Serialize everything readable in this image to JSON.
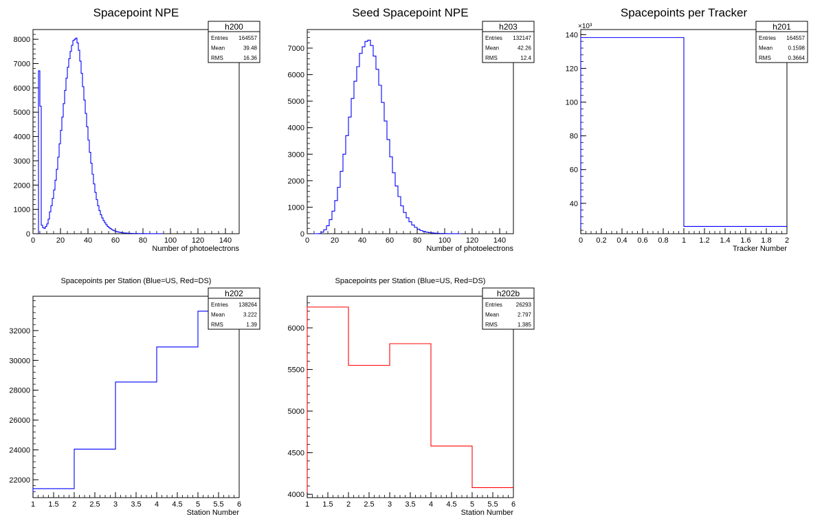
{
  "chart_data": [
    {
      "id": "h200",
      "type": "histogram",
      "title": "Spacepoint NPE",
      "xlabel": "Number of photoelectrons",
      "ylabel": "",
      "xlim": [
        0,
        150
      ],
      "ylim": [
        0,
        8400
      ],
      "xticks": [
        0,
        20,
        40,
        60,
        80,
        100,
        120,
        140
      ],
      "yticks": [
        0,
        1000,
        2000,
        3000,
        4000,
        5000,
        6000,
        7000,
        8000
      ],
      "y_multiplier_label": "",
      "color": "#0000ff",
      "stats": {
        "name": "h200",
        "rows": [
          [
            "Entries",
            "164557"
          ],
          [
            "Mean",
            "39.48"
          ],
          [
            "RMS",
            "16.36"
          ]
        ]
      },
      "bin_width": 1,
      "x_start": 4,
      "values": [
        6700,
        5250,
        350,
        250,
        220,
        300,
        400,
        600,
        900,
        1150,
        1450,
        1800,
        2200,
        2650,
        3150,
        3700,
        4250,
        4800,
        5350,
        5900,
        6400,
        6850,
        7200,
        7500,
        7750,
        7950,
        8000,
        8050,
        7850,
        7550,
        7100,
        6600,
        6050,
        5500,
        4950,
        4400,
        3850,
        3350,
        2900,
        2450,
        2050,
        1700,
        1400,
        1150,
        950,
        780,
        650,
        540,
        450,
        370,
        300,
        250,
        210,
        170,
        140,
        115,
        95,
        80,
        65,
        55,
        45,
        38,
        32,
        28,
        24,
        20,
        17,
        14,
        12,
        10,
        9,
        8,
        7,
        6,
        5,
        5,
        4,
        4,
        3,
        3,
        3,
        2,
        2,
        2,
        2,
        1,
        1,
        1,
        1,
        1
      ]
    },
    {
      "id": "h203",
      "type": "histogram",
      "title": "Seed Spacepoint NPE",
      "xlabel": "Number of photoelectrons",
      "ylabel": "",
      "xlim": [
        0,
        150
      ],
      "ylim": [
        0,
        7700
      ],
      "xticks": [
        0,
        20,
        40,
        60,
        80,
        100,
        120,
        140
      ],
      "yticks": [
        0,
        1000,
        2000,
        3000,
        4000,
        5000,
        6000,
        7000
      ],
      "y_multiplier_label": "",
      "color": "#0000ff",
      "stats": {
        "name": "h203",
        "rows": [
          [
            "Entries",
            "132147"
          ],
          [
            "Mean",
            "42.26"
          ],
          [
            "RMS",
            "12.4"
          ]
        ]
      },
      "bin_width": 2,
      "x_start": 0,
      "values": [
        0,
        0,
        0,
        0,
        5,
        60,
        150,
        300,
        530,
        850,
        1250,
        1750,
        2350,
        3000,
        3700,
        4400,
        5100,
        5750,
        6300,
        6800,
        7050,
        7250,
        7300,
        7100,
        6700,
        6200,
        5600,
        4950,
        4250,
        3550,
        2900,
        2300,
        1800,
        1400,
        1050,
        800,
        600,
        450,
        330,
        240,
        170,
        120,
        85,
        60,
        40,
        30,
        20,
        15,
        10,
        7,
        5,
        3,
        2,
        1,
        1,
        0
      ]
    },
    {
      "id": "h201",
      "type": "histogram",
      "title": "Spacepoints per Tracker",
      "xlabel": "Tracker Number",
      "ylabel": "",
      "xlim": [
        0,
        2
      ],
      "ylim": [
        22000,
        143000
      ],
      "xticks": [
        0,
        0.2,
        0.4,
        0.6,
        0.8,
        1,
        1.2,
        1.4,
        1.6,
        1.8,
        2
      ],
      "yticks": [
        40000,
        60000,
        80000,
        100000,
        120000,
        140000
      ],
      "tick_divisor": 1000,
      "y_multiplier_label": "×10³",
      "color": "#0000ff",
      "stats": {
        "name": "h201",
        "rows": [
          [
            "Entries",
            "164557"
          ],
          [
            "Mean",
            "0.1598"
          ],
          [
            "RMS",
            "0.3664"
          ]
        ]
      },
      "bin_width": 1,
      "x_start": 0,
      "values": [
        138264,
        26293
      ]
    },
    {
      "id": "h202",
      "type": "histogram",
      "title": "Spacepoints per Station (Blue=US, Red=DS)",
      "xlabel": "Station Number",
      "ylabel": "",
      "xlim": [
        1,
        6
      ],
      "ylim": [
        20800,
        34300
      ],
      "xticks": [
        1,
        1.5,
        2,
        2.5,
        3,
        3.5,
        4,
        4.5,
        5,
        5.5,
        6
      ],
      "yticks": [
        22000,
        24000,
        26000,
        28000,
        30000,
        32000
      ],
      "y_multiplier_label": "",
      "color": "#0000ff",
      "stats": {
        "name": "h202",
        "rows": [
          [
            "Entries",
            "138264"
          ],
          [
            "Mean",
            "3.222"
          ],
          [
            "RMS",
            "1.39"
          ]
        ]
      },
      "bin_width": 1,
      "x_start": 1,
      "values": [
        21400,
        24050,
        28550,
        30900,
        33300
      ]
    },
    {
      "id": "h202b",
      "type": "histogram",
      "title": "Spacepoints per Station (Blue=US, Red=DS)",
      "xlabel": "Station Number",
      "ylabel": "",
      "xlim": [
        1,
        6
      ],
      "ylim": [
        3960,
        6380
      ],
      "xticks": [
        1,
        1.5,
        2,
        2.5,
        3,
        3.5,
        4,
        4.5,
        5,
        5.5,
        6
      ],
      "yticks": [
        4000,
        4500,
        5000,
        5500,
        6000
      ],
      "y_multiplier_label": "",
      "color": "#ff0000",
      "stats": {
        "name": "h202b",
        "rows": [
          [
            "Entries",
            "26293"
          ],
          [
            "Mean",
            "2.797"
          ],
          [
            "RMS",
            "1.385"
          ]
        ]
      },
      "bin_width": 1,
      "x_start": 1,
      "values": [
        6250,
        5550,
        5810,
        4580,
        4080
      ]
    }
  ]
}
